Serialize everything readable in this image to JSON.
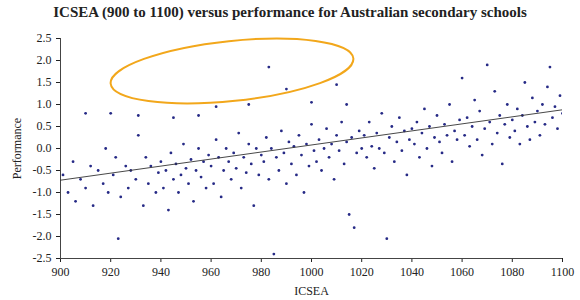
{
  "chart_data": {
    "type": "scatter",
    "title": "ICSEA (900 to 1100) versus performance for Australian secondary schools",
    "x_label": "ICSEA",
    "y_label": "Performance",
    "color": "#262a86",
    "marker": "dot",
    "x": [
      901,
      903,
      905,
      906,
      908,
      910,
      912,
      913,
      915,
      917,
      918,
      919,
      921,
      922,
      923,
      924,
      926,
      927,
      928,
      930,
      931,
      933,
      934,
      935,
      936,
      938,
      939,
      940,
      941,
      942,
      943,
      944,
      945,
      946,
      947,
      948,
      949,
      950,
      951,
      952,
      953,
      954,
      955,
      956,
      957,
      958,
      959,
      960,
      961,
      962,
      963,
      964,
      965,
      966,
      967,
      968,
      969,
      970,
      971,
      972,
      973,
      974,
      975,
      976,
      977,
      978,
      979,
      980,
      981,
      982,
      983,
      984,
      985,
      986,
      987,
      988,
      989,
      990,
      991,
      992,
      993,
      994,
      995,
      996,
      997,
      998,
      999,
      1000,
      1001,
      1002,
      1003,
      1004,
      1005,
      1006,
      1007,
      1008,
      1009,
      1010,
      1011,
      1012,
      1013,
      1014,
      1015,
      1016,
      1017,
      1018,
      1019,
      1020,
      1021,
      1022,
      1023,
      1024,
      1025,
      1026,
      1027,
      1028,
      1029,
      1030,
      1031,
      1032,
      1033,
      1034,
      1035,
      1036,
      1037,
      1038,
      1039,
      1040,
      1041,
      1042,
      1043,
      1044,
      1045,
      1046,
      1047,
      1048,
      1049,
      1050,
      1051,
      1052,
      1053,
      1054,
      1055,
      1056,
      1057,
      1058,
      1059,
      1060,
      1061,
      1062,
      1063,
      1064,
      1065,
      1066,
      1067,
      1068,
      1069,
      1070,
      1071,
      1072,
      1073,
      1074,
      1075,
      1076,
      1077,
      1078,
      1079,
      1080,
      1081,
      1082,
      1083,
      1084,
      1085,
      1086,
      1087,
      1088,
      1089,
      1090,
      1091,
      1092,
      1093,
      1094,
      1095,
      1096,
      1097,
      1098,
      1099,
      1100,
      910,
      920,
      931,
      945,
      955,
      962,
      975,
      983,
      990,
      1000,
      1010,
      1014
    ],
    "values": [
      -0.6,
      -1.0,
      -0.3,
      -1.2,
      -0.7,
      -0.9,
      -0.4,
      -1.3,
      -0.5,
      -0.8,
      0.0,
      -1.0,
      -0.6,
      -0.2,
      -2.05,
      -1.1,
      -0.4,
      -0.9,
      -0.5,
      -0.7,
      0.3,
      -1.3,
      -0.2,
      -0.8,
      -0.4,
      -1.0,
      -0.55,
      -0.3,
      -0.9,
      -0.5,
      -1.4,
      -0.1,
      -0.7,
      -0.35,
      -1.0,
      -0.6,
      0.1,
      -0.45,
      -0.8,
      -0.25,
      -1.2,
      -0.5,
      0.0,
      -0.65,
      -0.3,
      -0.9,
      -0.15,
      -0.4,
      -0.8,
      0.2,
      -0.2,
      -1.1,
      -0.5,
      0.0,
      -0.3,
      -0.7,
      -0.1,
      -0.45,
      0.35,
      -0.9,
      -0.2,
      -0.55,
      0.1,
      -0.35,
      -1.3,
      0.0,
      -0.6,
      -0.15,
      -0.3,
      0.25,
      -0.7,
      0.0,
      -2.4,
      -0.2,
      -0.5,
      0.4,
      -0.1,
      -0.8,
      0.15,
      -0.35,
      0.05,
      -0.6,
      0.3,
      -0.15,
      -1.0,
      0.1,
      -0.4,
      0.55,
      -0.05,
      -0.3,
      0.2,
      -0.5,
      0.0,
      0.45,
      -0.2,
      0.1,
      -0.7,
      0.3,
      -0.05,
      0.6,
      -0.35,
      0.15,
      -1.5,
      0.25,
      -1.8,
      -0.1,
      0.4,
      0.0,
      0.3,
      -0.2,
      0.6,
      0.05,
      -0.45,
      0.35,
      0.0,
      0.8,
      -0.1,
      -2.05,
      0.25,
      0.5,
      -0.3,
      0.15,
      0.7,
      -0.05,
      0.4,
      -0.6,
      0.2,
      0.45,
      0.1,
      0.6,
      -0.2,
      0.35,
      0.9,
      0.0,
      0.5,
      -0.4,
      0.25,
      0.75,
      0.15,
      -0.1,
      0.55,
      0.3,
      1.0,
      -0.3,
      0.4,
      0.2,
      0.65,
      1.6,
      0.3,
      0.7,
      0.05,
      0.5,
      1.1,
      0.2,
      0.85,
      -0.15,
      0.45,
      1.9,
      0.6,
      0.1,
      1.3,
      0.35,
      0.75,
      -0.35,
      0.55,
      1.0,
      0.25,
      0.65,
      0.4,
      0.9,
      0.1,
      0.75,
      1.5,
      0.5,
      0.2,
      1.15,
      0.6,
      0.85,
      0.3,
      1.0,
      0.55,
      1.4,
      1.85,
      0.7,
      0.95,
      0.45,
      1.2,
      0.8,
      0.8,
      0.8,
      0.75,
      0.7,
      0.75,
      0.95,
      1.0,
      1.85,
      1.35,
      1.05,
      1.45,
      1.0
    ],
    "trendline": {
      "x": [
        900,
        1100
      ],
      "values": [
        -0.72,
        0.88
      ]
    },
    "xlim": [
      900,
      1100
    ],
    "xticks": [
      900,
      920,
      940,
      960,
      980,
      1000,
      1020,
      1040,
      1060,
      1080,
      1100
    ],
    "ylim": [
      -2.5,
      2.5
    ],
    "yticks": [
      -2.5,
      {
        "value": -2,
        "label": "-2.0"
      },
      -1.5,
      {
        "value": -1,
        "label": "-1.0"
      },
      -0.5,
      {
        "value": 0,
        "label": "0.0"
      },
      0.5,
      {
        "value": 1,
        "label": "1.0"
      },
      1.5,
      {
        "value": 2,
        "label": "2.0"
      },
      2.5
    ],
    "grid": false
  }
}
